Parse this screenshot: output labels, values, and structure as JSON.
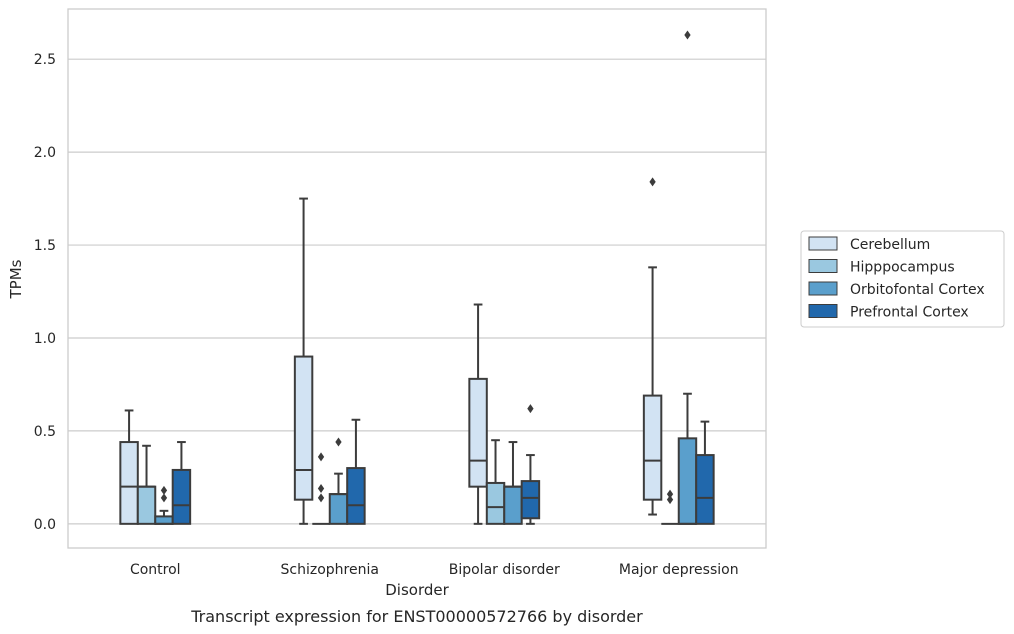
{
  "chart_data": {
    "type": "box",
    "title": "",
    "caption": "Transcript expression for ENST00000572766 by disorder",
    "xlabel": "Disorder",
    "ylabel": "TPMs",
    "ylim": [
      -0.13,
      2.77
    ],
    "yticks": [
      0.0,
      0.5,
      1.0,
      1.5,
      2.0,
      2.5
    ],
    "ytick_labels": [
      "0.0",
      "0.5",
      "1.0",
      "1.5",
      "2.0",
      "2.5"
    ],
    "grid": "horizontal",
    "legend_position": "right",
    "categories": [
      "Control",
      "Schizophrenia",
      "Bipolar disorder",
      "Major depression"
    ],
    "series": [
      {
        "name": "Cerebellum",
        "color": "#d2e3f3",
        "boxes": [
          {
            "min": 0.0,
            "q1": 0.0,
            "median": 0.2,
            "q3": 0.44,
            "max": 0.61,
            "outliers": []
          },
          {
            "min": 0.0,
            "q1": 0.13,
            "median": 0.29,
            "q3": 0.9,
            "max": 1.75,
            "outliers": []
          },
          {
            "min": 0.0,
            "q1": 0.2,
            "median": 0.34,
            "q3": 0.78,
            "max": 1.18,
            "outliers": []
          },
          {
            "min": 0.05,
            "q1": 0.13,
            "median": 0.34,
            "q3": 0.69,
            "max": 1.38,
            "outliers": [
              1.84
            ]
          }
        ]
      },
      {
        "name": "Hipppocampus",
        "color": "#9ac8e0",
        "boxes": [
          {
            "min": 0.0,
            "q1": 0.0,
            "median": 0.2,
            "q3": 0.2,
            "max": 0.42,
            "outliers": []
          },
          {
            "min": 0.0,
            "q1": 0.0,
            "median": 0.0,
            "q3": 0.0,
            "max": 0.0,
            "outliers": [
              0.14,
              0.19,
              0.36
            ]
          },
          {
            "min": 0.0,
            "q1": 0.0,
            "median": 0.09,
            "q3": 0.22,
            "max": 0.45,
            "outliers": []
          },
          {
            "min": 0.0,
            "q1": 0.0,
            "median": 0.0,
            "q3": 0.0,
            "max": 0.0,
            "outliers": [
              0.13,
              0.16
            ]
          }
        ]
      },
      {
        "name": "Orbitofontal Cortex",
        "color": "#5a9fcc",
        "boxes": [
          {
            "min": 0.0,
            "q1": 0.0,
            "median": 0.0,
            "q3": 0.04,
            "max": 0.07,
            "outliers": [
              0.14,
              0.18
            ]
          },
          {
            "min": 0.0,
            "q1": 0.0,
            "median": 0.16,
            "q3": 0.16,
            "max": 0.27,
            "outliers": [
              0.44
            ]
          },
          {
            "min": 0.0,
            "q1": 0.0,
            "median": 0.2,
            "q3": 0.2,
            "max": 0.44,
            "outliers": []
          },
          {
            "min": 0.0,
            "q1": 0.0,
            "median": 0.0,
            "q3": 0.46,
            "max": 0.7,
            "outliers": [
              2.63
            ]
          }
        ]
      },
      {
        "name": "Prefrontal Cortex",
        "color": "#2168ac",
        "boxes": [
          {
            "min": 0.0,
            "q1": 0.0,
            "median": 0.1,
            "q3": 0.29,
            "max": 0.44,
            "outliers": []
          },
          {
            "min": 0.0,
            "q1": 0.0,
            "median": 0.1,
            "q3": 0.3,
            "max": 0.56,
            "outliers": []
          },
          {
            "min": 0.0,
            "q1": 0.03,
            "median": 0.14,
            "q3": 0.23,
            "max": 0.37,
            "outliers": [
              0.62
            ]
          },
          {
            "min": 0.0,
            "q1": 0.0,
            "median": 0.14,
            "q3": 0.37,
            "max": 0.55,
            "outliers": []
          }
        ]
      }
    ]
  },
  "colors": {
    "box_edge": "#3c3c3c",
    "grid": "#cccccc",
    "frame": "#cccccc",
    "text": "#262626"
  }
}
